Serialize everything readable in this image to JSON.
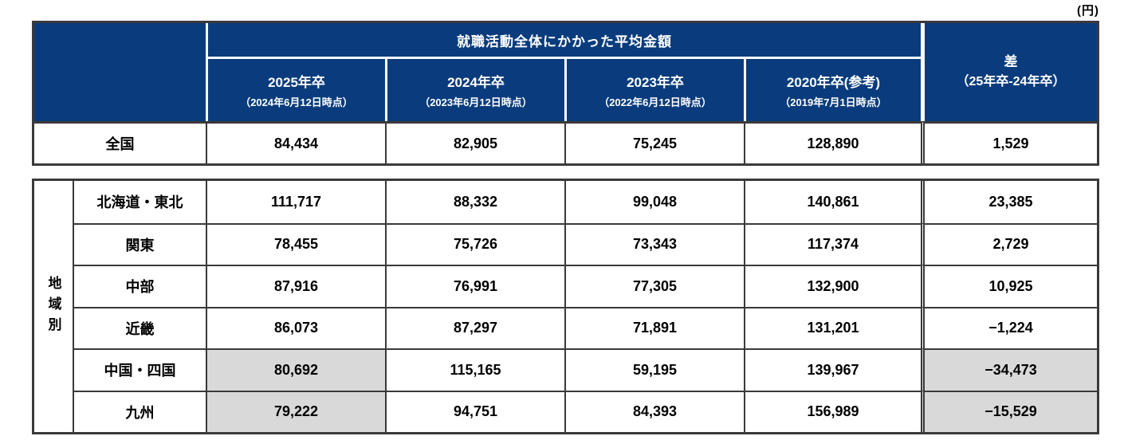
{
  "unit_note": "(円)",
  "colors": {
    "header_bg": "#0a3c7d",
    "highlight_bg": "#d9d9d9",
    "border": "#3a3a3a"
  },
  "header": {
    "title": "就職活動全体にかかった平均金額",
    "columns": [
      {
        "label": "2025年卒",
        "note": "（2024年6月12日時点）"
      },
      {
        "label": "2024年卒",
        "note": "（2023年6月12日時点）"
      },
      {
        "label": "2023年卒",
        "note": "（2022年6月12日時点）"
      },
      {
        "label": "2020年卒(参考)",
        "note": "（2019年7月1日時点）"
      }
    ],
    "diff": {
      "line1": "差",
      "line2": "（25年卒-24年卒）"
    }
  },
  "national": {
    "label": "全国",
    "values": [
      "84,434",
      "82,905",
      "75,245",
      "128,890"
    ],
    "diff": "1,529"
  },
  "regions": {
    "group_label": "地域別",
    "rows": [
      {
        "label": "北海道・東北",
        "values": [
          "111,717",
          "88,332",
          "99,048",
          "140,861"
        ],
        "diff": "23,385",
        "highlighted": false
      },
      {
        "label": "関東",
        "values": [
          "78,455",
          "75,726",
          "73,343",
          "117,374"
        ],
        "diff": "2,729",
        "highlighted": false
      },
      {
        "label": "中部",
        "values": [
          "87,916",
          "76,991",
          "77,305",
          "132,900"
        ],
        "diff": "10,925",
        "highlighted": false
      },
      {
        "label": "近畿",
        "values": [
          "86,073",
          "87,297",
          "71,891",
          "131,201"
        ],
        "diff": "−1,224",
        "highlighted": false
      },
      {
        "label": "中国・四国",
        "values": [
          "80,692",
          "115,165",
          "59,195",
          "139,967"
        ],
        "diff": "−34,473",
        "highlighted": true
      },
      {
        "label": "九州",
        "values": [
          "79,222",
          "94,751",
          "84,393",
          "156,989"
        ],
        "diff": "−15,529",
        "highlighted": true
      }
    ]
  },
  "chart_data": {
    "type": "table",
    "title": "就職活動全体にかかった平均金額",
    "unit": "円",
    "columns": [
      "2025年卒（2024年6月12日時点）",
      "2024年卒（2023年6月12日時点）",
      "2023年卒（2022年6月12日時点）",
      "2020年卒(参考)（2019年7月1日時点）",
      "差（25年卒-24年卒）"
    ],
    "rows": [
      {
        "group": "",
        "label": "全国",
        "values": [
          84434,
          82905,
          75245,
          128890,
          1529
        ]
      },
      {
        "group": "地域別",
        "label": "北海道・東北",
        "values": [
          111717,
          88332,
          99048,
          140861,
          23385
        ]
      },
      {
        "group": "地域別",
        "label": "関東",
        "values": [
          78455,
          75726,
          73343,
          117374,
          2729
        ]
      },
      {
        "group": "地域別",
        "label": "中部",
        "values": [
          87916,
          76991,
          77305,
          132900,
          10925
        ]
      },
      {
        "group": "地域別",
        "label": "近畿",
        "values": [
          86073,
          87297,
          71891,
          131201,
          -1224
        ]
      },
      {
        "group": "地域別",
        "label": "中国・四国",
        "values": [
          80692,
          115165,
          59195,
          139967,
          -34473
        ],
        "highlighted_cells": [
          "2025年卒",
          "差"
        ]
      },
      {
        "group": "地域別",
        "label": "九州",
        "values": [
          79222,
          94751,
          84393,
          156989,
          -15529
        ],
        "highlighted_cells": [
          "2025年卒",
          "差"
        ]
      }
    ]
  }
}
